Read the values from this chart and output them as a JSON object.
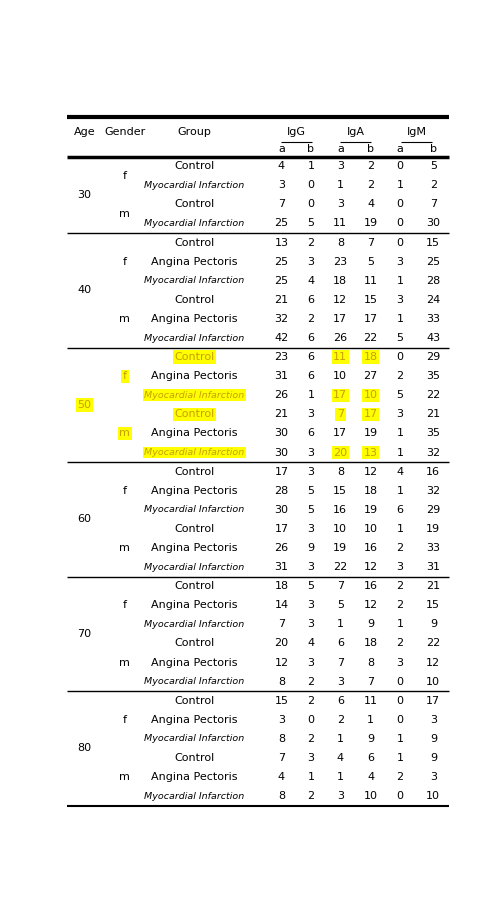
{
  "rows": [
    {
      "age": "30",
      "gender": "f",
      "group": "Control",
      "vals": [
        4,
        1,
        3,
        2,
        0,
        5
      ],
      "h_group": false,
      "h_vals": [
        false,
        false,
        false,
        false,
        false,
        false
      ]
    },
    {
      "age": "",
      "gender": "",
      "group": "Myocardial Infarction",
      "vals": [
        3,
        0,
        1,
        2,
        1,
        2
      ],
      "h_group": false,
      "h_vals": [
        false,
        false,
        false,
        false,
        false,
        false
      ]
    },
    {
      "age": "",
      "gender": "m",
      "group": "Control",
      "vals": [
        7,
        0,
        3,
        4,
        0,
        7
      ],
      "h_group": false,
      "h_vals": [
        false,
        false,
        false,
        false,
        false,
        false
      ]
    },
    {
      "age": "",
      "gender": "",
      "group": "Myocardial Infarction",
      "vals": [
        25,
        5,
        11,
        19,
        0,
        30
      ],
      "h_group": false,
      "h_vals": [
        false,
        false,
        false,
        false,
        false,
        false
      ]
    },
    {
      "age": "40",
      "gender": "f",
      "group": "Control",
      "vals": [
        13,
        2,
        8,
        7,
        0,
        15
      ],
      "h_group": false,
      "h_vals": [
        false,
        false,
        false,
        false,
        false,
        false
      ]
    },
    {
      "age": "",
      "gender": "",
      "group": "Angina Pectoris",
      "vals": [
        25,
        3,
        23,
        5,
        3,
        25
      ],
      "h_group": false,
      "h_vals": [
        false,
        false,
        false,
        false,
        false,
        false
      ]
    },
    {
      "age": "",
      "gender": "",
      "group": "Myocardial Infarction",
      "vals": [
        25,
        4,
        18,
        11,
        1,
        28
      ],
      "h_group": false,
      "h_vals": [
        false,
        false,
        false,
        false,
        false,
        false
      ]
    },
    {
      "age": "",
      "gender": "m",
      "group": "Control",
      "vals": [
        21,
        6,
        12,
        15,
        3,
        24
      ],
      "h_group": false,
      "h_vals": [
        false,
        false,
        false,
        false,
        false,
        false
      ]
    },
    {
      "age": "",
      "gender": "",
      "group": "Angina Pectoris",
      "vals": [
        32,
        2,
        17,
        17,
        1,
        33
      ],
      "h_group": false,
      "h_vals": [
        false,
        false,
        false,
        false,
        false,
        false
      ]
    },
    {
      "age": "",
      "gender": "",
      "group": "Myocardial Infarction",
      "vals": [
        42,
        6,
        26,
        22,
        5,
        43
      ],
      "h_group": false,
      "h_vals": [
        false,
        false,
        false,
        false,
        false,
        false
      ]
    },
    {
      "age": "50",
      "gender": "f",
      "group": "Control",
      "vals": [
        23,
        6,
        11,
        18,
        0,
        29
      ],
      "h_group": true,
      "h_vals": [
        false,
        false,
        true,
        true,
        false,
        false
      ]
    },
    {
      "age": "",
      "gender": "",
      "group": "Angina Pectoris",
      "vals": [
        31,
        6,
        10,
        27,
        2,
        35
      ],
      "h_group": false,
      "h_vals": [
        false,
        false,
        false,
        false,
        false,
        false
      ]
    },
    {
      "age": "",
      "gender": "",
      "group": "Myocardial Infarction",
      "vals": [
        26,
        1,
        17,
        10,
        5,
        22
      ],
      "h_group": true,
      "h_vals": [
        false,
        false,
        true,
        true,
        false,
        false
      ]
    },
    {
      "age": "",
      "gender": "m",
      "group": "Control",
      "vals": [
        21,
        3,
        7,
        17,
        3,
        21
      ],
      "h_group": true,
      "h_vals": [
        false,
        false,
        true,
        true,
        false,
        false
      ]
    },
    {
      "age": "",
      "gender": "",
      "group": "Angina Pectoris",
      "vals": [
        30,
        6,
        17,
        19,
        1,
        35
      ],
      "h_group": false,
      "h_vals": [
        false,
        false,
        false,
        false,
        false,
        false
      ]
    },
    {
      "age": "",
      "gender": "",
      "group": "Myocardial Infarction",
      "vals": [
        30,
        3,
        20,
        13,
        1,
        32
      ],
      "h_group": true,
      "h_vals": [
        false,
        false,
        true,
        true,
        false,
        false
      ]
    },
    {
      "age": "60",
      "gender": "f",
      "group": "Control",
      "vals": [
        17,
        3,
        8,
        12,
        4,
        16
      ],
      "h_group": false,
      "h_vals": [
        false,
        false,
        false,
        false,
        false,
        false
      ]
    },
    {
      "age": "",
      "gender": "",
      "group": "Angina Pectoris",
      "vals": [
        28,
        5,
        15,
        18,
        1,
        32
      ],
      "h_group": false,
      "h_vals": [
        false,
        false,
        false,
        false,
        false,
        false
      ]
    },
    {
      "age": "",
      "gender": "",
      "group": "Myocardial Infarction",
      "vals": [
        30,
        5,
        16,
        19,
        6,
        29
      ],
      "h_group": false,
      "h_vals": [
        false,
        false,
        false,
        false,
        false,
        false
      ]
    },
    {
      "age": "",
      "gender": "m",
      "group": "Control",
      "vals": [
        17,
        3,
        10,
        10,
        1,
        19
      ],
      "h_group": false,
      "h_vals": [
        false,
        false,
        false,
        false,
        false,
        false
      ]
    },
    {
      "age": "",
      "gender": "",
      "group": "Angina Pectoris",
      "vals": [
        26,
        9,
        19,
        16,
        2,
        33
      ],
      "h_group": false,
      "h_vals": [
        false,
        false,
        false,
        false,
        false,
        false
      ]
    },
    {
      "age": "",
      "gender": "",
      "group": "Myocardial Infarction",
      "vals": [
        31,
        3,
        22,
        12,
        3,
        31
      ],
      "h_group": false,
      "h_vals": [
        false,
        false,
        false,
        false,
        false,
        false
      ]
    },
    {
      "age": "70",
      "gender": "f",
      "group": "Control",
      "vals": [
        18,
        5,
        7,
        16,
        2,
        21
      ],
      "h_group": false,
      "h_vals": [
        false,
        false,
        false,
        false,
        false,
        false
      ]
    },
    {
      "age": "",
      "gender": "",
      "group": "Angina Pectoris",
      "vals": [
        14,
        3,
        5,
        12,
        2,
        15
      ],
      "h_group": false,
      "h_vals": [
        false,
        false,
        false,
        false,
        false,
        false
      ]
    },
    {
      "age": "",
      "gender": "",
      "group": "Myocardial Infarction",
      "vals": [
        7,
        3,
        1,
        9,
        1,
        9
      ],
      "h_group": false,
      "h_vals": [
        false,
        false,
        false,
        false,
        false,
        false
      ]
    },
    {
      "age": "",
      "gender": "m",
      "group": "Control",
      "vals": [
        20,
        4,
        6,
        18,
        2,
        22
      ],
      "h_group": false,
      "h_vals": [
        false,
        false,
        false,
        false,
        false,
        false
      ]
    },
    {
      "age": "",
      "gender": "",
      "group": "Angina Pectoris",
      "vals": [
        12,
        3,
        7,
        8,
        3,
        12
      ],
      "h_group": false,
      "h_vals": [
        false,
        false,
        false,
        false,
        false,
        false
      ]
    },
    {
      "age": "",
      "gender": "",
      "group": "Myocardial Infarction",
      "vals": [
        8,
        2,
        3,
        7,
        0,
        10
      ],
      "h_group": false,
      "h_vals": [
        false,
        false,
        false,
        false,
        false,
        false
      ]
    },
    {
      "age": "80",
      "gender": "f",
      "group": "Control",
      "vals": [
        15,
        2,
        6,
        11,
        0,
        17
      ],
      "h_group": false,
      "h_vals": [
        false,
        false,
        false,
        false,
        false,
        false
      ]
    },
    {
      "age": "",
      "gender": "",
      "group": "Angina Pectoris",
      "vals": [
        3,
        0,
        2,
        1,
        0,
        3
      ],
      "h_group": false,
      "h_vals": [
        false,
        false,
        false,
        false,
        false,
        false
      ]
    },
    {
      "age": "",
      "gender": "",
      "group": "Myocardial Infarction",
      "vals": [
        8,
        2,
        1,
        9,
        1,
        9
      ],
      "h_group": false,
      "h_vals": [
        false,
        false,
        false,
        false,
        false,
        false
      ]
    },
    {
      "age": "",
      "gender": "m",
      "group": "Control",
      "vals": [
        7,
        3,
        4,
        6,
        1,
        9
      ],
      "h_group": false,
      "h_vals": [
        false,
        false,
        false,
        false,
        false,
        false
      ]
    },
    {
      "age": "",
      "gender": "",
      "group": "Angina Pectoris",
      "vals": [
        4,
        1,
        1,
        4,
        2,
        3
      ],
      "h_group": false,
      "h_vals": [
        false,
        false,
        false,
        false,
        false,
        false
      ]
    },
    {
      "age": "",
      "gender": "",
      "group": "Myocardial Infarction",
      "vals": [
        8,
        2,
        3,
        10,
        0,
        10
      ],
      "h_group": false,
      "h_vals": [
        false,
        false,
        false,
        false,
        false,
        false
      ]
    }
  ],
  "age_spans": [
    {
      "age": "30",
      "rows": [
        0,
        1,
        2,
        3
      ],
      "highlight": false
    },
    {
      "age": "40",
      "rows": [
        4,
        5,
        6,
        7,
        8,
        9
      ],
      "highlight": false
    },
    {
      "age": "50",
      "rows": [
        10,
        11,
        12,
        13,
        14,
        15
      ],
      "highlight": true
    },
    {
      "age": "60",
      "rows": [
        16,
        17,
        18,
        19,
        20,
        21
      ],
      "highlight": false
    },
    {
      "age": "70",
      "rows": [
        22,
        23,
        24,
        25,
        26,
        27
      ],
      "highlight": false
    },
    {
      "age": "80",
      "rows": [
        28,
        29,
        30,
        31,
        32,
        33
      ],
      "highlight": false
    }
  ],
  "gender_spans": [
    {
      "gender": "f",
      "rows": [
        0,
        1
      ],
      "highlight": false
    },
    {
      "gender": "m",
      "rows": [
        2,
        3
      ],
      "highlight": false
    },
    {
      "gender": "f",
      "rows": [
        4,
        5,
        6
      ],
      "highlight": false
    },
    {
      "gender": "m",
      "rows": [
        7,
        8,
        9
      ],
      "highlight": false
    },
    {
      "gender": "f",
      "rows": [
        10,
        11,
        12
      ],
      "highlight": true
    },
    {
      "gender": "m",
      "rows": [
        13,
        14,
        15
      ],
      "highlight": true
    },
    {
      "gender": "f",
      "rows": [
        16,
        17,
        18
      ],
      "highlight": false
    },
    {
      "gender": "m",
      "rows": [
        19,
        20,
        21
      ],
      "highlight": false
    },
    {
      "gender": "f",
      "rows": [
        22,
        23,
        24
      ],
      "highlight": false
    },
    {
      "gender": "m",
      "rows": [
        25,
        26,
        27
      ],
      "highlight": false
    },
    {
      "gender": "f",
      "rows": [
        28,
        29,
        30
      ],
      "highlight": false
    },
    {
      "gender": "m",
      "rows": [
        31,
        32,
        33
      ],
      "highlight": false
    }
  ],
  "separator_before_rows": [
    4,
    10,
    16,
    22,
    28
  ],
  "highlight_color": "#ffff00",
  "highlight_text_color": "#000000",
  "age50_color": "#c8a000"
}
